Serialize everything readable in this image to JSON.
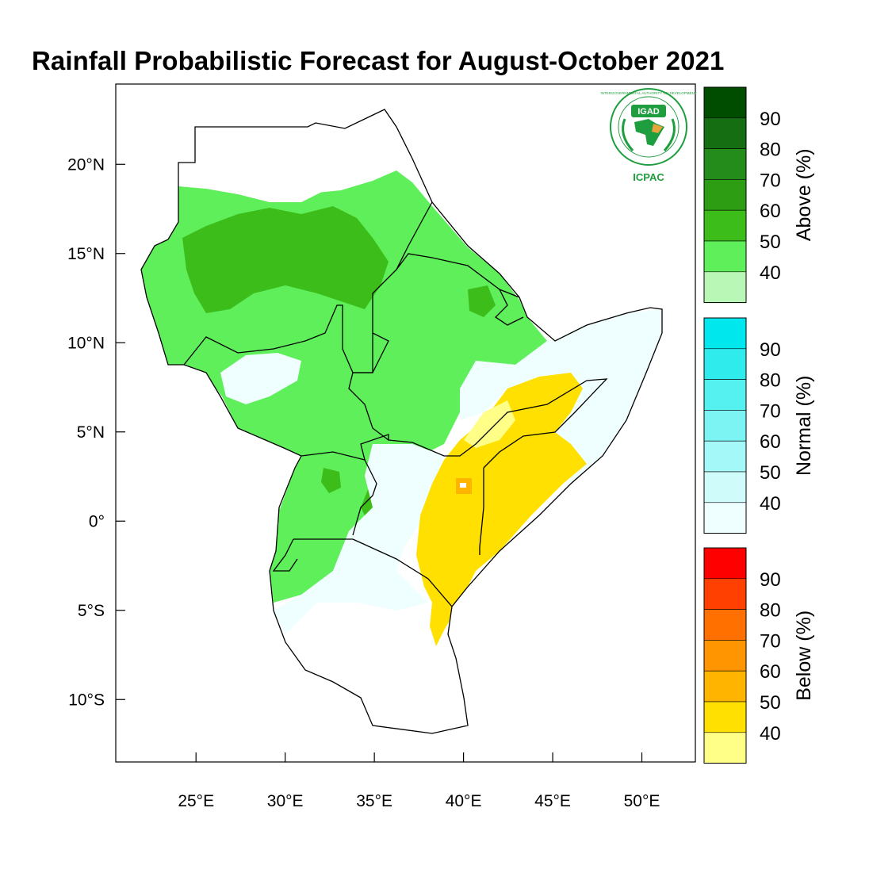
{
  "title": "Rainfall Probabilistic Forecast for August-October 2021",
  "map": {
    "lon_ticks": [
      {
        "value": 25,
        "label": "25°E"
      },
      {
        "value": 30,
        "label": "30°E"
      },
      {
        "value": 35,
        "label": "35°E"
      },
      {
        "value": 40,
        "label": "40°E"
      },
      {
        "value": 45,
        "label": "45°E"
      },
      {
        "value": 50,
        "label": "50°E"
      }
    ],
    "lat_ticks": [
      {
        "value": 20,
        "label": "20°N"
      },
      {
        "value": 15,
        "label": "15°N"
      },
      {
        "value": 10,
        "label": "10°N"
      },
      {
        "value": 5,
        "label": "5°N"
      },
      {
        "value": 0,
        "label": "0°"
      },
      {
        "value": -5,
        "label": "5°S"
      },
      {
        "value": -10,
        "label": "10°S"
      }
    ],
    "lon_range": [
      20.5,
      53
    ],
    "lat_range": [
      -13.5,
      24.5
    ]
  },
  "logo": {
    "name": "IGAD",
    "org": "ICPAC",
    "ring_text": "INTERGOVERNMENTAL AUTHORITY ON DEVELOPMENT"
  },
  "colorbars": [
    {
      "title": "Above (%)",
      "labels": [
        "40",
        "50",
        "60",
        "70",
        "80",
        "90"
      ],
      "colors": [
        "#b8f7b5",
        "#5eef5a",
        "#3dbd1a",
        "#2d9e14",
        "#238c1a",
        "#156e12",
        "#004d00"
      ]
    },
    {
      "title": "Normal (%)",
      "labels": [
        "40",
        "50",
        "60",
        "70",
        "80",
        "90"
      ],
      "colors": [
        "#effefe",
        "#cffbfb",
        "#a5f8f8",
        "#7cf4f4",
        "#55f0f0",
        "#2febeb",
        "#00e7ee"
      ]
    },
    {
      "title": "Below (%)",
      "labels": [
        "40",
        "50",
        "60",
        "70",
        "80",
        "90"
      ],
      "colors": [
        "#ffff88",
        "#ffe000",
        "#ffb400",
        "#ff9500",
        "#ff7000",
        "#ff4000",
        "#ff0000"
      ]
    }
  ],
  "colors": {
    "above": "#5eef5a",
    "above_dark": "#3dbd1a",
    "normal": "#effefe",
    "below": "#ffe000",
    "below_light": "#ffff88",
    "below_orange": "#ffb400",
    "border": "#000000"
  }
}
